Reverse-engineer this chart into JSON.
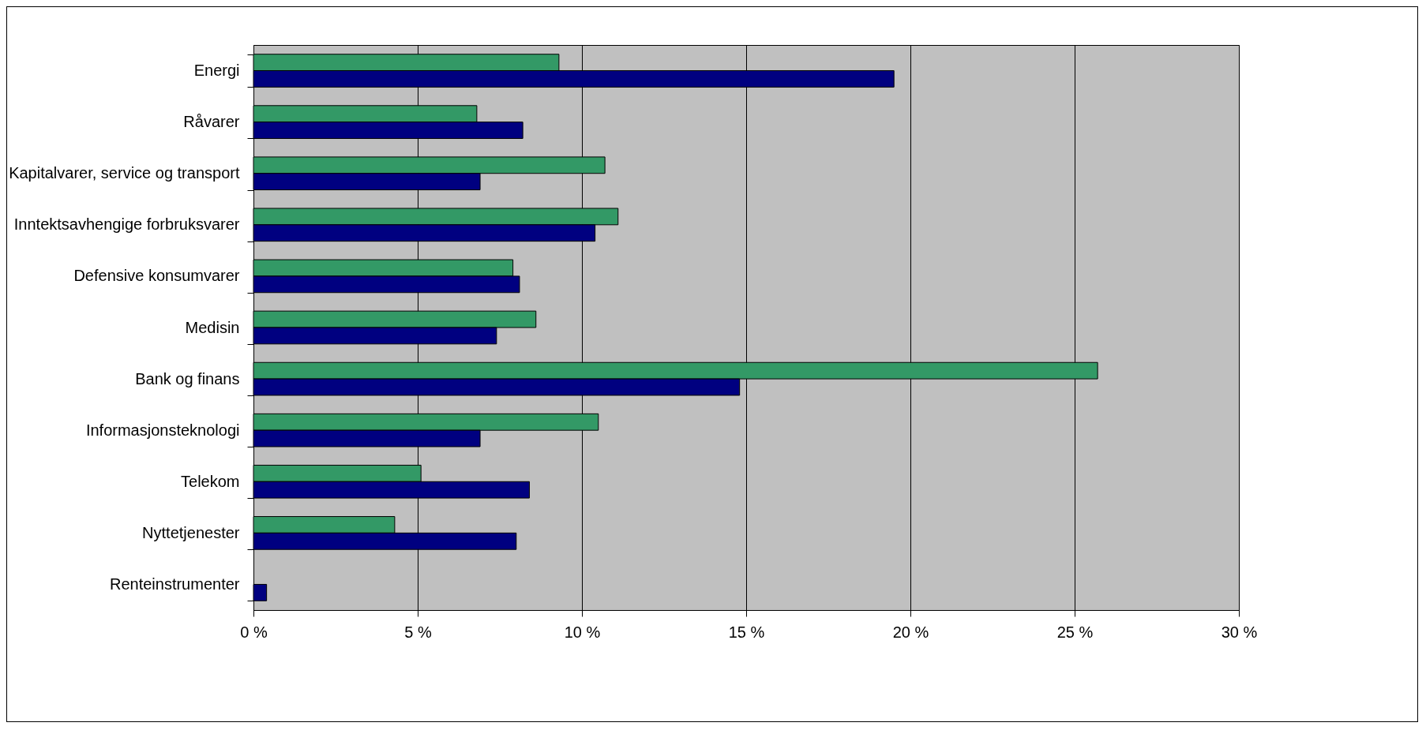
{
  "chart_data": {
    "type": "bar",
    "orientation": "horizontal",
    "categories": [
      "Energi",
      "Råvarer",
      "Kapitalvarer, service og transport",
      "Inntektsavhengige forbruksvarer",
      "Defensive konsumvarer",
      "Medisin",
      "Bank og finans",
      "Informasjonsteknologi",
      "Telekom",
      "Nyttetjenester",
      "Renteinstrumenter"
    ],
    "series": [
      {
        "color": "#339966",
        "values": [
          9.3,
          6.8,
          10.7,
          11.1,
          7.9,
          8.6,
          25.7,
          10.5,
          5.1,
          4.3,
          null
        ]
      },
      {
        "color": "#000080",
        "values": [
          19.5,
          8.2,
          6.9,
          10.4,
          8.1,
          7.4,
          14.8,
          6.9,
          8.4,
          8.0,
          0.4
        ]
      }
    ],
    "xlim": [
      0,
      30
    ],
    "xticks": [
      {
        "value": 0,
        "label": "0 %"
      },
      {
        "value": 5,
        "label": "5 %"
      },
      {
        "value": 10,
        "label": "10 %"
      },
      {
        "value": 15,
        "label": "15 %"
      },
      {
        "value": 20,
        "label": "20 %"
      },
      {
        "value": 25,
        "label": "25 %"
      },
      {
        "value": 30,
        "label": "30 %"
      }
    ],
    "grid": "x"
  }
}
